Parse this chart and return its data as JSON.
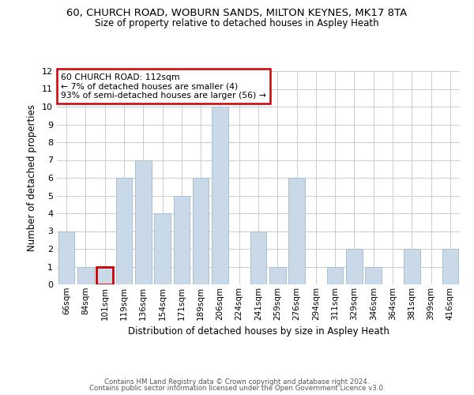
{
  "title_line1": "60, CHURCH ROAD, WOBURN SANDS, MILTON KEYNES, MK17 8TA",
  "title_line2": "Size of property relative to detached houses in Aspley Heath",
  "xlabel": "Distribution of detached houses by size in Aspley Heath",
  "ylabel": "Number of detached properties",
  "categories": [
    "66sqm",
    "84sqm",
    "101sqm",
    "119sqm",
    "136sqm",
    "154sqm",
    "171sqm",
    "189sqm",
    "206sqm",
    "224sqm",
    "241sqm",
    "259sqm",
    "276sqm",
    "294sqm",
    "311sqm",
    "329sqm",
    "346sqm",
    "364sqm",
    "381sqm",
    "399sqm",
    "416sqm"
  ],
  "values": [
    3,
    1,
    1,
    6,
    7,
    4,
    5,
    6,
    10,
    0,
    3,
    1,
    6,
    0,
    1,
    2,
    1,
    0,
    2,
    0,
    2
  ],
  "bar_color": "#c9d9e8",
  "bar_edge_color": "#a8c0d4",
  "highlight_bar_index": 2,
  "highlight_edge_color": "#cc0000",
  "ylim": [
    0,
    12
  ],
  "yticks": [
    0,
    1,
    2,
    3,
    4,
    5,
    6,
    7,
    8,
    9,
    10,
    11,
    12
  ],
  "annotation_text": "60 CHURCH ROAD: 112sqm\n← 7% of detached houses are smaller (4)\n93% of semi-detached houses are larger (56) →",
  "annotation_box_color": "#ffffff",
  "annotation_box_edge_color": "#cc0000",
  "footnote1": "Contains HM Land Registry data © Crown copyright and database right 2024.",
  "footnote2": "Contains public sector information licensed under the Open Government Licence v3.0.",
  "background_color": "#ffffff",
  "grid_color": "#cccccc"
}
